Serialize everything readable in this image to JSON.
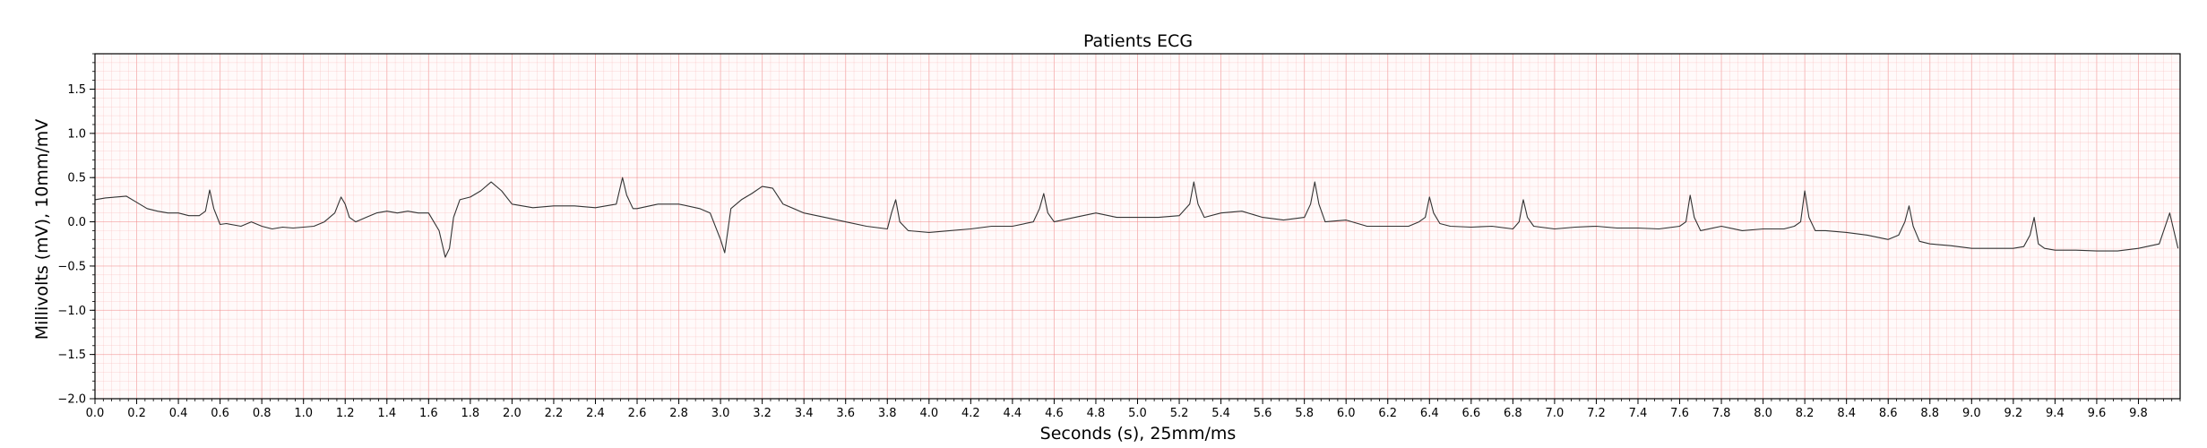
{
  "chart_data": {
    "type": "line",
    "title": "Patients ECG",
    "xlabel": "Seconds (s), 25mm/ms",
    "ylabel": "Millivolts (mV), 10mm/mV",
    "xlim": [
      0.0,
      10.0
    ],
    "ylim": [
      -2.0,
      1.9
    ],
    "x_ticks": [
      "0.0",
      "0.2",
      "0.4",
      "0.6",
      "0.8",
      "1.0",
      "1.2",
      "1.4",
      "1.6",
      "1.8",
      "2.0",
      "2.2",
      "2.4",
      "2.6",
      "2.8",
      "3.0",
      "3.2",
      "3.4",
      "3.6",
      "3.8",
      "4.0",
      "4.2",
      "4.4",
      "4.6",
      "4.8",
      "5.0",
      "5.2",
      "5.4",
      "5.6",
      "5.8",
      "6.0",
      "6.2",
      "6.4",
      "6.6",
      "6.8",
      "7.0",
      "7.2",
      "7.4",
      "7.6",
      "7.8",
      "8.0",
      "8.2",
      "8.4",
      "8.6",
      "8.8",
      "9.0",
      "9.2",
      "9.4",
      "9.6",
      "9.8"
    ],
    "y_ticks": [
      "-2.0",
      "-1.5",
      "-1.0",
      "-0.5",
      "0.0",
      "0.5",
      "1.0",
      "1.5"
    ],
    "grid": true,
    "grid_color": "#f7b6b6",
    "grid_major_color": "#f08a8a",
    "line_color": "#333333",
    "series": [
      {
        "x": [
          0.0,
          0.05,
          0.1,
          0.15,
          0.2,
          0.25,
          0.3,
          0.35,
          0.4,
          0.45,
          0.5,
          0.53,
          0.55,
          0.57,
          0.6,
          0.63,
          0.7,
          0.75,
          0.8,
          0.85,
          0.9,
          0.95,
          1.0,
          1.05,
          1.1,
          1.15,
          1.18,
          1.2,
          1.22,
          1.25,
          1.28,
          1.3,
          1.35,
          1.4,
          1.45,
          1.5,
          1.55,
          1.6,
          1.65,
          1.68,
          1.7,
          1.72,
          1.75,
          1.8,
          1.85,
          1.9,
          1.95,
          2.0,
          2.05,
          2.1,
          2.2,
          2.3,
          2.4,
          2.45,
          2.5,
          2.53,
          2.55,
          2.58,
          2.6,
          2.7,
          2.8,
          2.9,
          2.95,
          3.0,
          3.02,
          3.05,
          3.1,
          3.15,
          3.2,
          3.25,
          3.3,
          3.4,
          3.5,
          3.6,
          3.7,
          3.8,
          3.82,
          3.84,
          3.86,
          3.9,
          4.0,
          4.1,
          4.2,
          4.3,
          4.4,
          4.5,
          4.53,
          4.55,
          4.57,
          4.6,
          4.7,
          4.8,
          4.9,
          5.0,
          5.1,
          5.2,
          5.25,
          5.27,
          5.29,
          5.32,
          5.4,
          5.5,
          5.6,
          5.7,
          5.8,
          5.83,
          5.85,
          5.87,
          5.9,
          6.0,
          6.1,
          6.2,
          6.3,
          6.35,
          6.38,
          6.4,
          6.42,
          6.45,
          6.5,
          6.6,
          6.7,
          6.8,
          6.83,
          6.85,
          6.87,
          6.9,
          7.0,
          7.1,
          7.2,
          7.3,
          7.4,
          7.5,
          7.6,
          7.63,
          7.65,
          7.67,
          7.7,
          7.8,
          7.9,
          8.0,
          8.1,
          8.15,
          8.18,
          8.2,
          8.22,
          8.25,
          8.3,
          8.4,
          8.5,
          8.6,
          8.65,
          8.68,
          8.7,
          8.72,
          8.75,
          8.8,
          8.9,
          9.0,
          9.1,
          9.2,
          9.25,
          9.28,
          9.3,
          9.32,
          9.35,
          9.4,
          9.5,
          9.6,
          9.7,
          9.8,
          9.9,
          9.95,
          9.97,
          9.99
        ],
        "y": [
          0.25,
          0.27,
          0.28,
          0.29,
          0.22,
          0.15,
          0.12,
          0.1,
          0.1,
          0.07,
          0.07,
          0.12,
          0.36,
          0.15,
          -0.03,
          -0.02,
          -0.05,
          0.0,
          -0.05,
          -0.08,
          -0.06,
          -0.07,
          -0.06,
          -0.05,
          0.0,
          0.1,
          0.28,
          0.2,
          0.05,
          0.0,
          0.03,
          0.05,
          0.1,
          0.12,
          0.1,
          0.12,
          0.1,
          0.1,
          -0.1,
          -0.4,
          -0.3,
          0.05,
          0.25,
          0.28,
          0.35,
          0.45,
          0.35,
          0.2,
          0.18,
          0.16,
          0.18,
          0.18,
          0.16,
          0.18,
          0.2,
          0.5,
          0.3,
          0.15,
          0.15,
          0.2,
          0.2,
          0.15,
          0.1,
          -0.2,
          -0.35,
          0.15,
          0.25,
          0.32,
          0.4,
          0.38,
          0.2,
          0.1,
          0.05,
          0.0,
          -0.05,
          -0.08,
          0.1,
          0.25,
          0.0,
          -0.1,
          -0.12,
          -0.1,
          -0.08,
          -0.05,
          -0.05,
          0.0,
          0.15,
          0.32,
          0.1,
          0.0,
          0.05,
          0.1,
          0.05,
          0.05,
          0.05,
          0.07,
          0.2,
          0.45,
          0.2,
          0.05,
          0.1,
          0.12,
          0.05,
          0.02,
          0.05,
          0.2,
          0.45,
          0.2,
          0.0,
          0.02,
          -0.05,
          -0.05,
          -0.05,
          0.0,
          0.05,
          0.28,
          0.1,
          -0.02,
          -0.05,
          -0.06,
          -0.05,
          -0.08,
          0.0,
          0.25,
          0.05,
          -0.05,
          -0.08,
          -0.06,
          -0.05,
          -0.07,
          -0.07,
          -0.08,
          -0.05,
          0.0,
          0.3,
          0.05,
          -0.1,
          -0.05,
          -0.1,
          -0.08,
          -0.08,
          -0.05,
          0.0,
          0.35,
          0.05,
          -0.1,
          -0.1,
          -0.12,
          -0.15,
          -0.2,
          -0.15,
          0.0,
          0.18,
          -0.05,
          -0.22,
          -0.25,
          -0.27,
          -0.3,
          -0.3,
          -0.3,
          -0.28,
          -0.15,
          0.05,
          -0.25,
          -0.3,
          -0.32,
          -0.32,
          -0.33,
          -0.33,
          -0.3,
          -0.25,
          0.1,
          -0.1,
          -0.3
        ]
      }
    ]
  }
}
